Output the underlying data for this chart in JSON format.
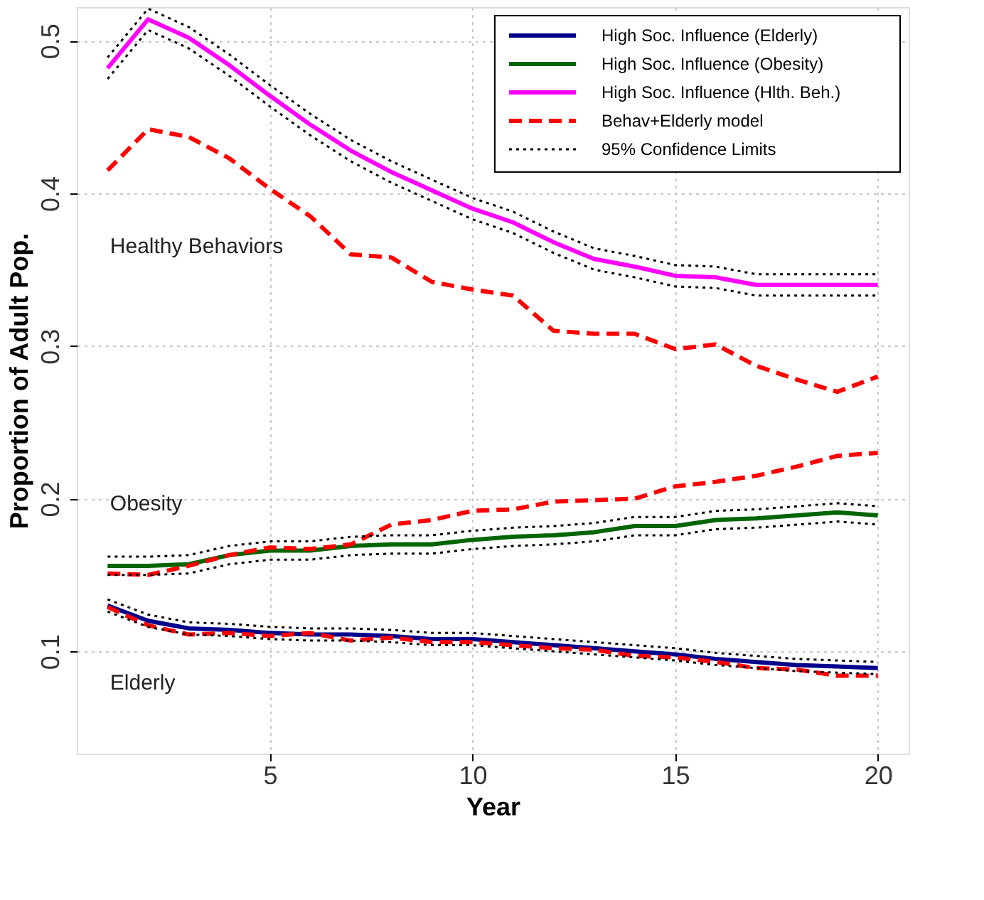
{
  "chart_data": {
    "type": "line",
    "xlabel": "Year",
    "ylabel": "Proportion of Adult Pop.",
    "x": [
      1,
      2,
      3,
      4,
      5,
      6,
      7,
      8,
      9,
      10,
      11,
      12,
      13,
      14,
      15,
      16,
      17,
      18,
      19,
      20
    ],
    "xlim": [
      0.24,
      20.76
    ],
    "xticks": [
      5,
      10,
      15,
      20
    ],
    "ylim": [
      0.033,
      0.522
    ],
    "yticks": [
      0.1,
      0.2,
      0.3,
      0.4,
      0.5
    ],
    "grid": true,
    "legend": "top right",
    "marker": "none",
    "series": [
      {
        "name": "High Soc. Influence (Elderly)",
        "color": "#00008b",
        "line_style": "solid",
        "values": [
          0.13,
          0.12,
          0.115,
          0.114,
          0.112,
          0.111,
          0.111,
          0.11,
          0.108,
          0.108,
          0.106,
          0.104,
          0.102,
          0.1,
          0.098,
          0.095,
          0.093,
          0.091,
          0.09,
          0.089
        ]
      },
      {
        "name": "High Soc. Influence (Obesity)",
        "color": "#006400",
        "line_style": "solid",
        "values": [
          0.156,
          0.156,
          0.157,
          0.163,
          0.166,
          0.166,
          0.169,
          0.17,
          0.17,
          0.173,
          0.175,
          0.176,
          0.178,
          0.182,
          0.182,
          0.186,
          0.187,
          0.189,
          0.191,
          0.189
        ]
      },
      {
        "name": "High Soc. Influence (Hlth. Beh.)",
        "color": "#ff00ff",
        "line_style": "solid",
        "values": [
          0.482,
          0.514,
          0.502,
          0.484,
          0.464,
          0.445,
          0.428,
          0.414,
          0.402,
          0.39,
          0.381,
          0.368,
          0.357,
          0.352,
          0.346,
          0.345,
          0.34,
          0.34,
          0.34,
          0.34
        ]
      },
      {
        "name": "Behav+Elderly model",
        "color": "#ff0000",
        "line_style": "dashed",
        "values": [
          0.129,
          0.117,
          0.111,
          0.112,
          0.11,
          0.112,
          0.107,
          0.109,
          0.106,
          0.106,
          0.104,
          0.102,
          0.101,
          0.097,
          0.096,
          0.093,
          0.089,
          0.088,
          0.084,
          0.084
        ]
      },
      {
        "color": "#ff0000",
        "line_style": "dashed",
        "values": [
          0.151,
          0.15,
          0.156,
          0.163,
          0.168,
          0.167,
          0.17,
          0.183,
          0.186,
          0.192,
          0.193,
          0.198,
          0.199,
          0.2,
          0.208,
          0.211,
          0.215,
          0.221,
          0.228,
          0.23
        ]
      },
      {
        "color": "#ff0000",
        "line_style": "dashed",
        "values": [
          0.415,
          0.442,
          0.437,
          0.423,
          0.403,
          0.385,
          0.36,
          0.358,
          0.342,
          0.337,
          0.333,
          0.31,
          0.308,
          0.308,
          0.298,
          0.301,
          0.287,
          0.278,
          0.27,
          0.28
        ]
      },
      {
        "name": "95% Confidence Limits",
        "color": "#000000",
        "line_style": "dotted",
        "values": [
          0.134,
          0.124,
          0.119,
          0.118,
          0.116,
          0.115,
          0.115,
          0.114,
          0.112,
          0.112,
          0.11,
          0.108,
          0.106,
          0.104,
          0.102,
          0.099,
          0.097,
          0.095,
          0.094,
          0.093
        ]
      },
      {
        "color": "#000000",
        "line_style": "dotted",
        "values": [
          0.126,
          0.116,
          0.111,
          0.11,
          0.108,
          0.107,
          0.107,
          0.106,
          0.104,
          0.104,
          0.102,
          0.1,
          0.098,
          0.096,
          0.094,
          0.091,
          0.089,
          0.087,
          0.086,
          0.085
        ]
      },
      {
        "color": "#000000",
        "line_style": "dotted",
        "values": [
          0.162,
          0.162,
          0.163,
          0.169,
          0.172,
          0.172,
          0.175,
          0.176,
          0.176,
          0.179,
          0.181,
          0.182,
          0.184,
          0.188,
          0.188,
          0.192,
          0.193,
          0.195,
          0.197,
          0.195
        ]
      },
      {
        "color": "#000000",
        "line_style": "dotted",
        "values": [
          0.15,
          0.15,
          0.151,
          0.157,
          0.16,
          0.16,
          0.163,
          0.164,
          0.164,
          0.167,
          0.169,
          0.17,
          0.172,
          0.176,
          0.176,
          0.18,
          0.181,
          0.183,
          0.185,
          0.183
        ]
      },
      {
        "color": "#000000",
        "line_style": "dotted",
        "values": [
          0.489,
          0.521,
          0.509,
          0.491,
          0.471,
          0.452,
          0.435,
          0.421,
          0.409,
          0.397,
          0.388,
          0.375,
          0.364,
          0.359,
          0.353,
          0.352,
          0.347,
          0.347,
          0.347,
          0.347
        ]
      },
      {
        "color": "#000000",
        "line_style": "dotted",
        "values": [
          0.475,
          0.507,
          0.495,
          0.477,
          0.457,
          0.438,
          0.421,
          0.407,
          0.395,
          0.383,
          0.374,
          0.361,
          0.35,
          0.345,
          0.339,
          0.338,
          0.333,
          0.333,
          0.333,
          0.333
        ]
      }
    ],
    "annotations": [
      "Healthy Behaviors",
      "Obesity",
      "Elderly"
    ]
  }
}
